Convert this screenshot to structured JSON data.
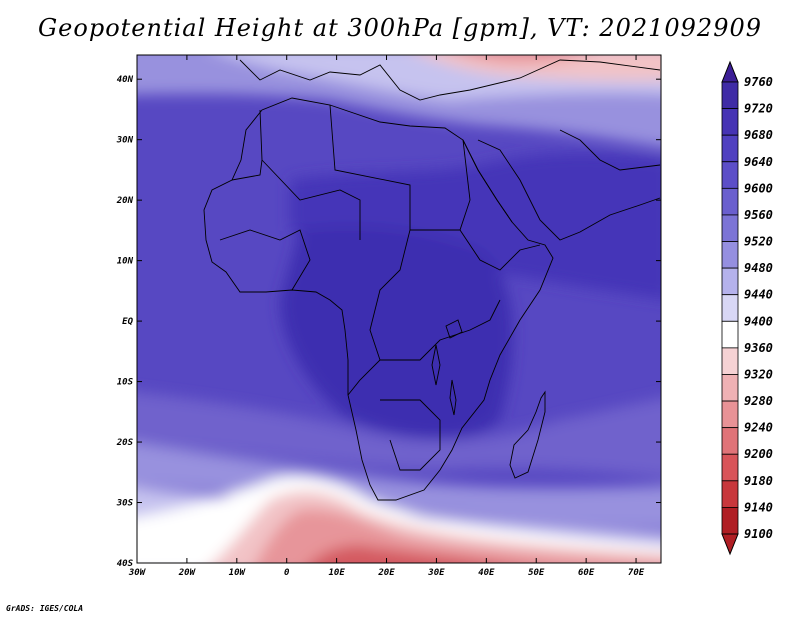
{
  "title": "Geopotential Height at 300hPa [gpm], VT: 2021092909",
  "credit": "GrADS: IGES/COLA",
  "map": {
    "lon_ticks": [
      "30W",
      "20W",
      "10W",
      "0",
      "10E",
      "20E",
      "30E",
      "40E",
      "50E",
      "60E",
      "70E"
    ],
    "lat_ticks": [
      "40N",
      "30N",
      "20N",
      "10N",
      "EQ",
      "10S",
      "20S",
      "30S",
      "40S"
    ],
    "lon_range": [
      -30,
      75
    ],
    "lat_range": [
      -40,
      44
    ]
  },
  "colorbar": {
    "levels": [
      "9760",
      "9720",
      "9680",
      "9640",
      "9600",
      "9560",
      "9520",
      "9480",
      "9440",
      "9400",
      "9360",
      "9320",
      "9280",
      "9240",
      "9200",
      "9180",
      "9140",
      "9100"
    ],
    "colors": [
      "#3c1e96",
      "#3f2ba6",
      "#4633b4",
      "#5040c0",
      "#5c4ec8",
      "#6a5fce",
      "#7c74d6",
      "#958fe0",
      "#b5b2ec",
      "#d8d7f5",
      "#ffffff",
      "#f6d2d4",
      "#efb1b4",
      "#e89296",
      "#e07378",
      "#d85459",
      "#c8373c",
      "#b01e24"
    ]
  },
  "field_colors": {
    "deep": "#3d2fb0",
    "core": "#4535b8",
    "mid": "#5748c2",
    "edge": "#6f62cc",
    "light": "#9891de",
    "pale": "#c6c3ef",
    "white": "#ffffff",
    "pink": "#f2c3c6",
    "rose": "#e7959a",
    "red": "#d45a60",
    "darkred": "#bb3239"
  }
}
